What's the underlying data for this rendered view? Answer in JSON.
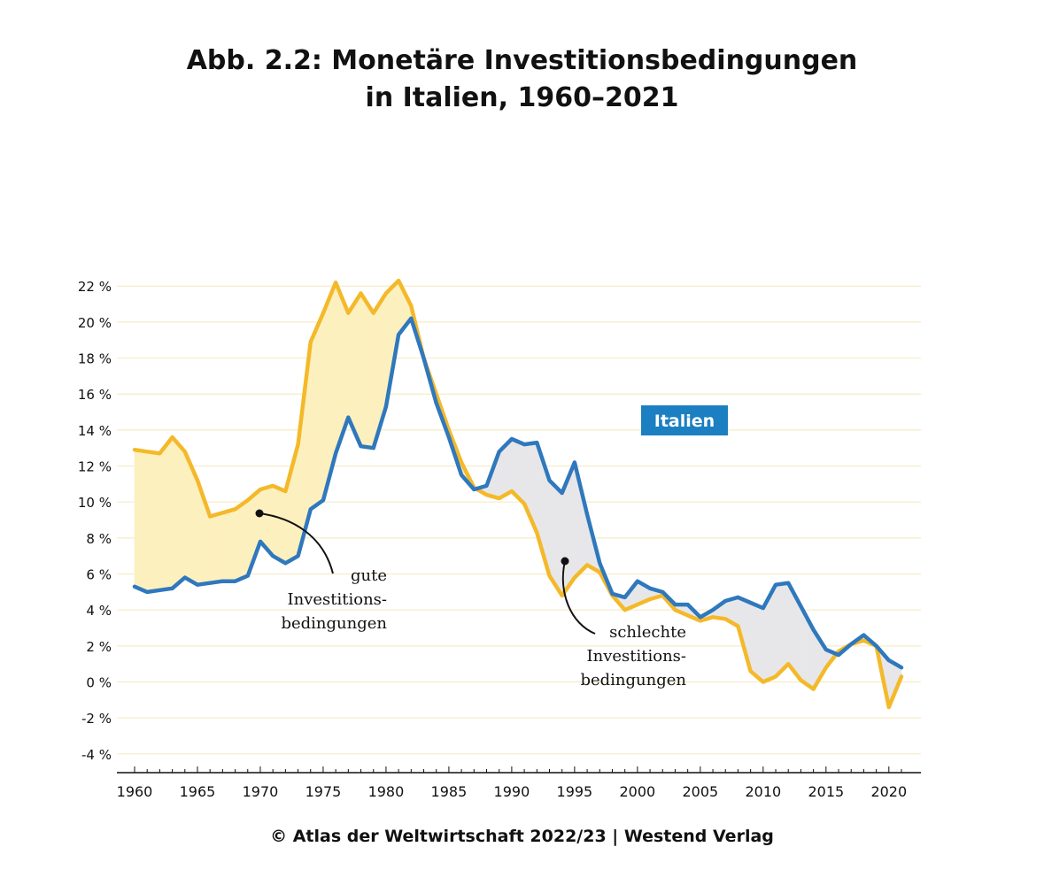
{
  "title_line1": "Abb. 2.2: Monetäre Investitionsbedingungen",
  "title_line2": "in Italien, 1960–2021",
  "footer": "© Atlas der Weltwirtschaft 2022/23 | Westend Verlag",
  "colors": {
    "blue": "#2f78bd",
    "yellow": "#f4b92a",
    "fill_good": "#fdf0bf",
    "fill_bad": "#e7e7ea",
    "grid": "#f6ecc7",
    "badge": "#1b7fc2"
  },
  "chart_data": {
    "type": "line",
    "legend_label": "Italien",
    "xlim": [
      1960,
      2021
    ],
    "ylim": [
      -4,
      22
    ],
    "y_ticks": [
      -4,
      -2,
      0,
      2,
      4,
      6,
      8,
      10,
      12,
      14,
      16,
      18,
      20,
      22
    ],
    "y_tick_labels": [
      "-4 %",
      "-2 %",
      "0 %",
      "2 %",
      "4 %",
      "6 %",
      "8 %",
      "10 %",
      "12 %",
      "14 %",
      "16 %",
      "18 %",
      "20 %",
      "22 %"
    ],
    "x_ticks": [
      1960,
      1965,
      1970,
      1975,
      1980,
      1985,
      1990,
      1995,
      2000,
      2005,
      2010,
      2015,
      2020
    ],
    "x_tick_labels": [
      "1960",
      "1965",
      "1970",
      "1975",
      "1980",
      "1985",
      "1990",
      "1995",
      "2000",
      "2005",
      "2010",
      "2015",
      "2020"
    ],
    "x": [
      1960,
      1961,
      1962,
      1963,
      1964,
      1965,
      1966,
      1967,
      1968,
      1969,
      1970,
      1971,
      1972,
      1973,
      1974,
      1975,
      1976,
      1977,
      1978,
      1979,
      1980,
      1981,
      1982,
      1983,
      1984,
      1985,
      1986,
      1987,
      1988,
      1989,
      1990,
      1991,
      1992,
      1993,
      1994,
      1995,
      1996,
      1997,
      1998,
      1999,
      2000,
      2001,
      2002,
      2003,
      2004,
      2005,
      2006,
      2007,
      2008,
      2009,
      2010,
      2011,
      2012,
      2013,
      2014,
      2015,
      2016,
      2017,
      2018,
      2019,
      2020,
      2021
    ],
    "series": [
      {
        "color": "blue",
        "values": [
          5.3,
          5.0,
          5.1,
          5.2,
          5.8,
          5.4,
          5.5,
          5.6,
          5.6,
          5.9,
          7.8,
          7.0,
          6.6,
          7.0,
          9.6,
          10.1,
          12.7,
          14.7,
          13.1,
          13.0,
          15.3,
          19.3,
          20.2,
          18.0,
          15.5,
          13.6,
          11.5,
          10.7,
          10.9,
          12.8,
          13.5,
          13.2,
          13.3,
          11.2,
          10.5,
          12.2,
          9.3,
          6.6,
          4.9,
          4.7,
          5.6,
          5.2,
          5.0,
          4.3,
          4.3,
          3.6,
          4.0,
          4.5,
          4.7,
          4.4,
          4.1,
          5.4,
          5.5,
          4.2,
          2.9,
          1.8,
          1.5,
          2.1,
          2.6,
          2.0,
          1.2,
          0.8
        ]
      },
      {
        "color": "yellow",
        "values": [
          12.9,
          12.8,
          12.7,
          13.6,
          12.8,
          11.2,
          9.2,
          9.4,
          9.6,
          10.1,
          10.7,
          10.9,
          10.6,
          13.2,
          18.9,
          20.5,
          22.2,
          20.5,
          21.6,
          20.5,
          21.6,
          22.3,
          20.9,
          18.0,
          16.0,
          14.0,
          12.2,
          10.8,
          10.4,
          10.2,
          10.6,
          9.9,
          8.3,
          5.9,
          4.8,
          5.8,
          6.5,
          6.1,
          4.8,
          4.0,
          4.3,
          4.6,
          4.8,
          4.0,
          3.7,
          3.4,
          3.6,
          3.5,
          3.1,
          0.6,
          0.0,
          0.3,
          1.0,
          0.1,
          -0.4,
          0.8,
          1.7,
          2.1,
          2.3,
          2.0,
          -1.4,
          0.3
        ]
      }
    ],
    "annotations": [
      {
        "lines": [
          "gute",
          "Investitions-",
          "bedingungen"
        ]
      },
      {
        "lines": [
          "schlechte",
          "Investitions-",
          "bedingungen"
        ]
      }
    ]
  }
}
